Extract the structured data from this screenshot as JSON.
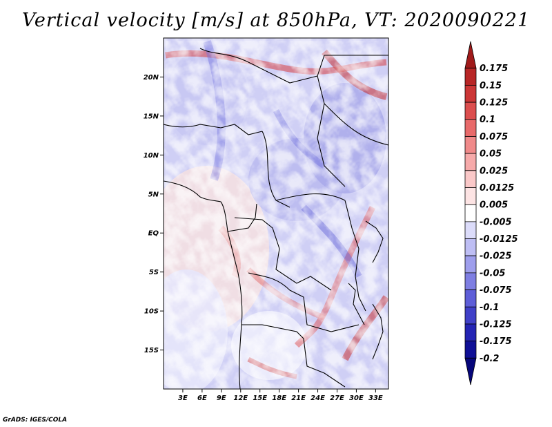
{
  "title": "Vertical velocity [m/s] at 850hPa, VT: 2020090221",
  "footer": "GrADS: IGES/COLA",
  "map": {
    "lat_ticks": [
      "20N",
      "15N",
      "10N",
      "5N",
      "EQ",
      "5S",
      "10S",
      "15S"
    ],
    "lon_ticks": [
      "3E",
      "6E",
      "9E",
      "12E",
      "15E",
      "18E",
      "21E",
      "24E",
      "27E",
      "30E",
      "33E"
    ],
    "lat_values": [
      20,
      15,
      10,
      5,
      0,
      -5,
      -10,
      -15
    ],
    "lon_values": [
      3,
      6,
      9,
      12,
      15,
      18,
      21,
      24,
      27,
      30,
      33
    ],
    "lat_range": [
      -20,
      25
    ],
    "lon_range": [
      0,
      35
    ]
  },
  "colorbar": {
    "labels": [
      "0.175",
      "0.15",
      "0.125",
      "0.1",
      "0.075",
      "0.05",
      "0.025",
      "0.0125",
      "0.005",
      "-0.005",
      "-0.0125",
      "-0.025",
      "-0.05",
      "-0.075",
      "-0.1",
      "-0.125",
      "-0.175",
      "-0.2"
    ],
    "colors": [
      "#a01a1a",
      "#b82626",
      "#cc3636",
      "#dc4e4e",
      "#e86a6a",
      "#f08a8a",
      "#f6aaaa",
      "#fac8c8",
      "#fde4e4",
      "#ffffff",
      "#dcdcfa",
      "#bebef4",
      "#9e9eec",
      "#7e7ee2",
      "#5e5ed8",
      "#4040c8",
      "#2424b4",
      "#0f0f96",
      "#06067a"
    ]
  },
  "chart_data": {
    "type": "heatmap",
    "title": "Vertical velocity [m/s] at 850hPa, VT: 2020090221",
    "variable": "Vertical velocity",
    "units": "m/s",
    "level": "850hPa",
    "valid_time": "2020090221",
    "x_axis": [
      "3E",
      "6E",
      "9E",
      "12E",
      "15E",
      "18E",
      "21E",
      "24E",
      "27E",
      "30E",
      "33E"
    ],
    "y_axis": [
      "20N",
      "15N",
      "10N",
      "5N",
      "EQ",
      "5S",
      "10S",
      "15S"
    ],
    "levels": [
      -0.2,
      -0.175,
      -0.125,
      -0.1,
      -0.075,
      -0.05,
      -0.025,
      -0.0125,
      -0.005,
      0.005,
      0.0125,
      0.025,
      0.05,
      0.075,
      0.1,
      0.125,
      0.15,
      0.175
    ]
  }
}
